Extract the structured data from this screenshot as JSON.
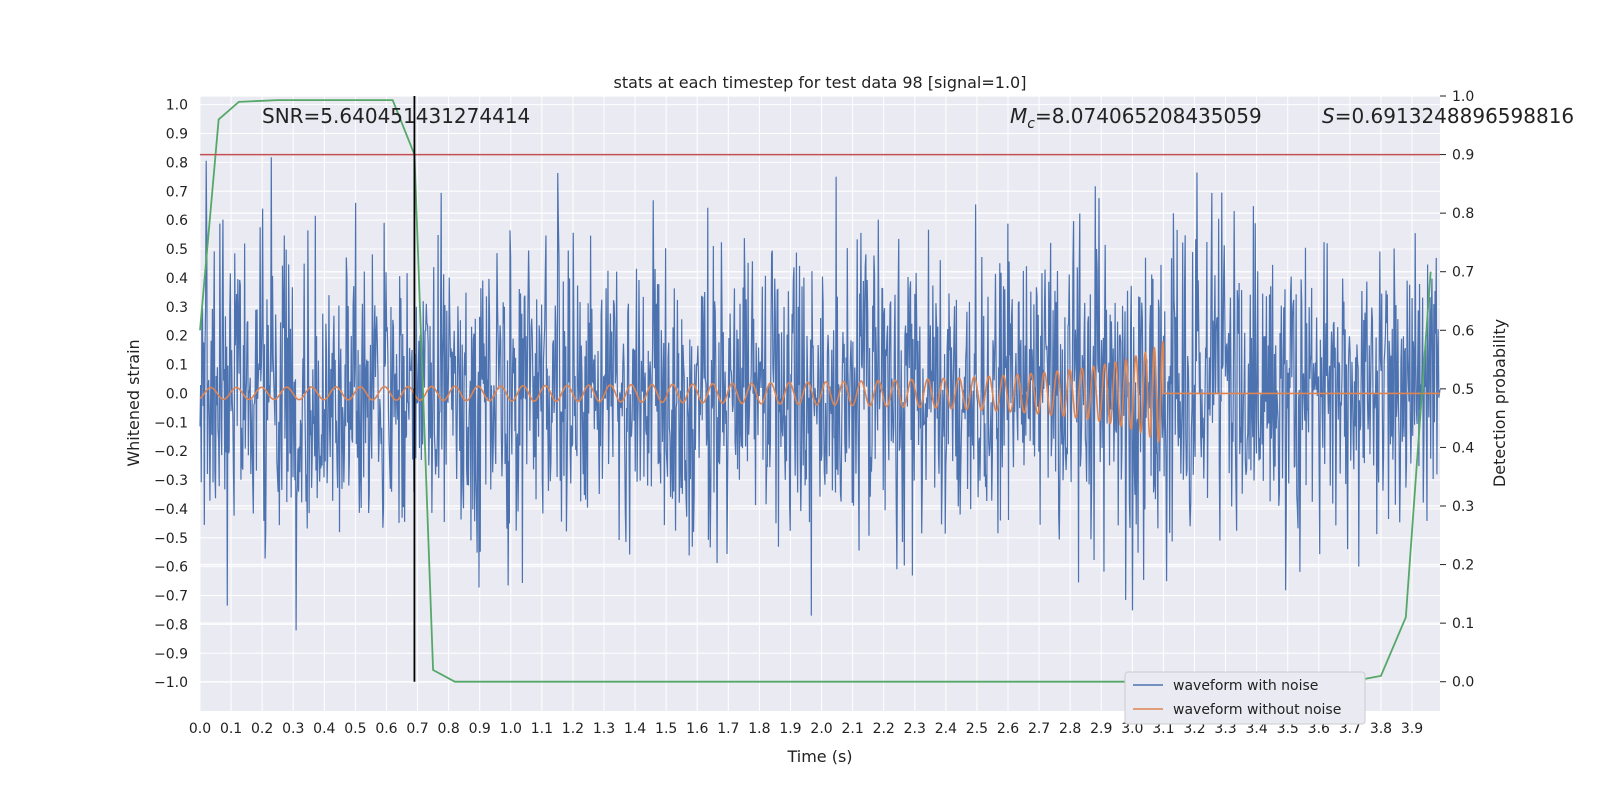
{
  "chart_data": {
    "type": "line",
    "title": "stats at each timestep for test data 98 [signal=1.0]",
    "xlabel": "Time (s)",
    "ylabel_left": "Whitened strain",
    "ylabel_right": "Detection probability",
    "xlim": [
      0.0,
      3.99
    ],
    "ylim_left": [
      -1.1,
      1.03
    ],
    "ylim_right": [
      -0.05,
      1.0
    ],
    "x_ticks": [
      "0.0",
      "0.1",
      "0.2",
      "0.3",
      "0.4",
      "0.5",
      "0.6",
      "0.7",
      "0.8",
      "0.9",
      "1.0",
      "1.1",
      "1.2",
      "1.3",
      "1.4",
      "1.5",
      "1.6",
      "1.7",
      "1.8",
      "1.9",
      "2.0",
      "2.1",
      "2.2",
      "2.3",
      "2.4",
      "2.5",
      "2.6",
      "2.7",
      "2.8",
      "2.9",
      "3.0",
      "3.1",
      "3.2",
      "3.3",
      "3.4",
      "3.5",
      "3.6",
      "3.7",
      "3.8",
      "3.9"
    ],
    "y_ticks_left": [
      "1.0",
      "0.9",
      "0.8",
      "0.7",
      "0.6",
      "0.5",
      "0.4",
      "0.3",
      "0.2",
      "0.1",
      "0.0",
      "−0.1",
      "−0.2",
      "−0.3",
      "−0.4",
      "−0.5",
      "−0.6",
      "−0.7",
      "−0.8",
      "−0.9",
      "−1.0"
    ],
    "y_ticks_right": [
      "1.0",
      "0.9",
      "0.8",
      "0.7",
      "0.6",
      "0.5",
      "0.4",
      "0.3",
      "0.2",
      "0.1",
      "0.0"
    ],
    "grid": true,
    "legend_position": "lower-right",
    "threshold_line": {
      "axis": "right",
      "y": 0.9,
      "color": "#c44e52"
    },
    "vertical_marker": {
      "x": 0.69,
      "color": "#000000"
    },
    "annotations": {
      "snr": "SNR=5.640451431274414",
      "mc_symbol": "M",
      "mc_sub": "c",
      "mc_value": "=8.074065208435059",
      "s_symbol": "S",
      "s_value": "=0.6913248896598816"
    },
    "series": [
      {
        "name": "waveform with noise",
        "axis": "left",
        "color": "#4c72b0",
        "note": "whitened noisy strain, amplitude roughly within ±0.95"
      },
      {
        "name": "waveform without noise",
        "axis": "left",
        "color": "#dd8452",
        "chirp": {
          "start_amplitude": 0.02,
          "peak_amplitude": 0.18,
          "merger_time": 3.1,
          "end_value": 0.0
        }
      },
      {
        "name": "",
        "axis": "right",
        "color": "#55a868",
        "x": [
          0.0,
          0.06,
          0.125,
          0.25,
          0.4,
          0.5,
          0.62,
          0.69,
          0.75,
          0.82,
          0.9,
          1.5,
          2.5,
          3.5,
          3.7,
          3.8,
          3.88,
          3.96
        ],
        "y": [
          0.6,
          0.96,
          0.99,
          0.993,
          0.993,
          0.993,
          0.993,
          0.9,
          0.02,
          0.0,
          0.0,
          0.0,
          0.0,
          0.0,
          0.0,
          0.01,
          0.11,
          0.7
        ]
      }
    ],
    "colors": {
      "plot_bg": "#eaeaf2",
      "grid": "#ffffff"
    }
  }
}
